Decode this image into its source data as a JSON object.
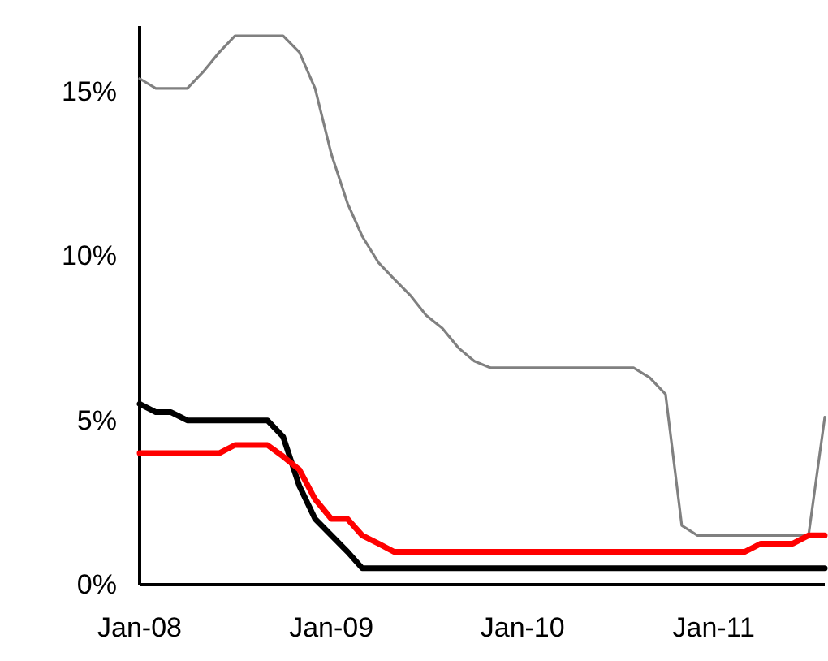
{
  "chart_data": {
    "type": "line",
    "x": [
      "2008-01",
      "2008-02",
      "2008-03",
      "2008-04",
      "2008-05",
      "2008-06",
      "2008-07",
      "2008-08",
      "2008-09",
      "2008-10",
      "2008-11",
      "2008-12",
      "2009-01",
      "2009-02",
      "2009-03",
      "2009-04",
      "2009-05",
      "2009-06",
      "2009-07",
      "2009-08",
      "2009-09",
      "2009-10",
      "2009-11",
      "2009-12",
      "2010-01",
      "2010-02",
      "2010-03",
      "2010-04",
      "2010-05",
      "2010-06",
      "2010-07",
      "2010-08",
      "2010-09",
      "2010-10",
      "2010-11",
      "2010-12",
      "2011-01",
      "2011-02",
      "2011-03",
      "2011-04",
      "2011-05",
      "2011-06",
      "2011-07",
      "2011-08"
    ],
    "series": [
      {
        "color": "#808080",
        "values": [
          15.4,
          15.1,
          15.1,
          15.1,
          15.6,
          16.2,
          16.7,
          16.7,
          16.7,
          16.7,
          16.2,
          15.1,
          13.1,
          11.6,
          10.6,
          9.8,
          9.3,
          8.8,
          8.2,
          7.8,
          7.2,
          6.8,
          6.6,
          6.6,
          6.6,
          6.6,
          6.6,
          6.6,
          6.6,
          6.6,
          6.6,
          6.6,
          6.3,
          5.8,
          1.8,
          1.5,
          1.5,
          1.5,
          1.5,
          1.5,
          1.5,
          1.5,
          1.5,
          5.1
        ]
      },
      {
        "color": "#000000",
        "values": [
          5.5,
          5.25,
          5.25,
          5.0,
          5.0,
          5.0,
          5.0,
          5.0,
          5.0,
          4.5,
          3.0,
          2.0,
          1.5,
          1.0,
          0.5,
          0.5,
          0.5,
          0.5,
          0.5,
          0.5,
          0.5,
          0.5,
          0.5,
          0.5,
          0.5,
          0.5,
          0.5,
          0.5,
          0.5,
          0.5,
          0.5,
          0.5,
          0.5,
          0.5,
          0.5,
          0.5,
          0.5,
          0.5,
          0.5,
          0.5,
          0.5,
          0.5,
          0.5,
          0.5
        ]
      },
      {
        "color": "#ff0000",
        "values": [
          4.0,
          4.0,
          4.0,
          4.0,
          4.0,
          4.0,
          4.25,
          4.25,
          4.25,
          3.9,
          3.5,
          2.6,
          2.0,
          2.0,
          1.5,
          1.25,
          1.0,
          1.0,
          1.0,
          1.0,
          1.0,
          1.0,
          1.0,
          1.0,
          1.0,
          1.0,
          1.0,
          1.0,
          1.0,
          1.0,
          1.0,
          1.0,
          1.0,
          1.0,
          1.0,
          1.0,
          1.0,
          1.0,
          1.0,
          1.25,
          1.25,
          1.25,
          1.5,
          1.5
        ]
      }
    ],
    "xlim": [
      "2008-01",
      "2011-08"
    ],
    "xticks": [
      {
        "value": "2008-01",
        "label": "Jan-08"
      },
      {
        "value": "2009-01",
        "label": "Jan-09"
      },
      {
        "value": "2010-01",
        "label": "Jan-10"
      },
      {
        "value": "2011-01",
        "label": "Jan-11"
      }
    ],
    "ylim": [
      0,
      17
    ],
    "yticks": [
      {
        "value": 0,
        "label": "0%"
      },
      {
        "value": 5,
        "label": "5%"
      },
      {
        "value": 10,
        "label": "10%"
      },
      {
        "value": 15,
        "label": "15%"
      }
    ],
    "marker": "none",
    "line_style": "solid"
  }
}
